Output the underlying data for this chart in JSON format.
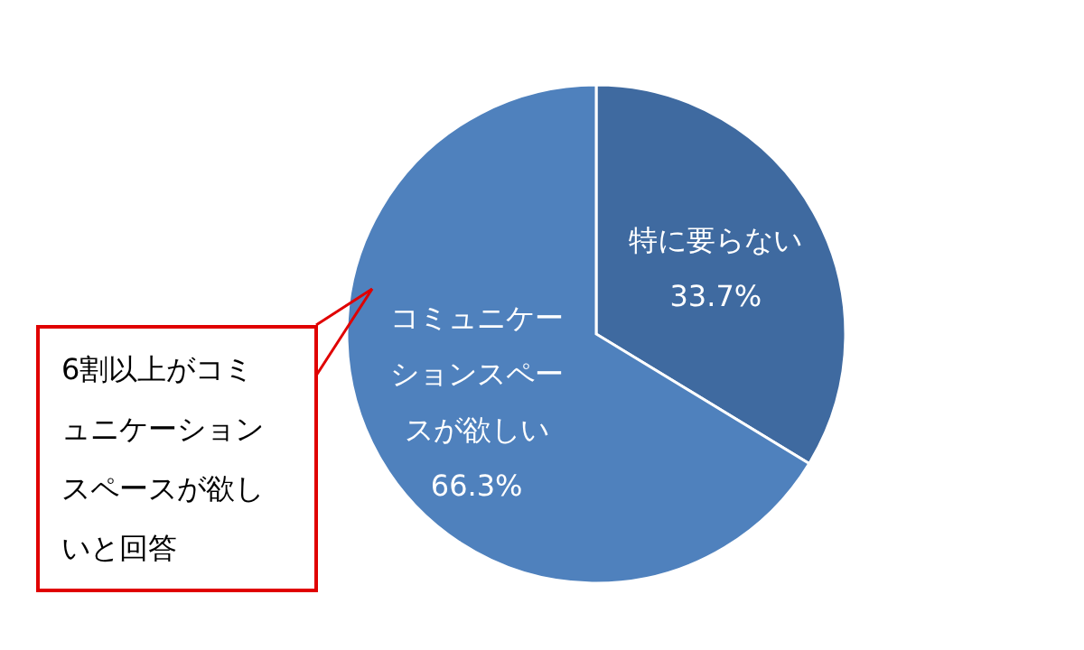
{
  "chart_data": {
    "type": "pie",
    "categories": [
      "特に要らない",
      "コミュニケーションスペースが欲しい"
    ],
    "values": [
      33.7,
      66.3
    ],
    "colors": [
      "#3f6aa0",
      "#4f81bd"
    ],
    "value_labels": [
      "33.7%",
      "66.3%"
    ],
    "annotations": [
      "6割以上がコミュニケーションスペースが欲しいと回答"
    ]
  }
}
